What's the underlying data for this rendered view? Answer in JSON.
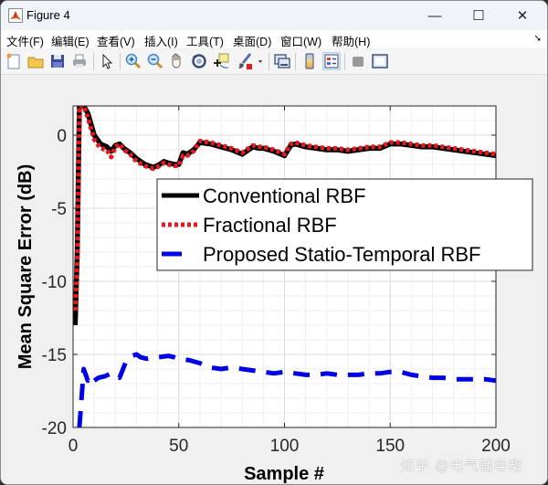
{
  "window": {
    "title": "Figure 4",
    "controls": {
      "minimize": "—",
      "maximize": "☐",
      "close": "✕"
    }
  },
  "menubar": {
    "items": [
      {
        "label": "文件(F)"
      },
      {
        "label": "编辑(E)"
      },
      {
        "label": "查看(V)"
      },
      {
        "label": "插入(I)"
      },
      {
        "label": "工具(T)"
      },
      {
        "label": "桌面(D)"
      },
      {
        "label": "窗口(W)"
      },
      {
        "label": "帮助(H)"
      }
    ],
    "dock_arrow": "➘"
  },
  "toolbar": {
    "buttons": [
      "new-figure",
      "open-file",
      "save-figure",
      "print-figure",
      "edit-plot",
      "zoom-in",
      "zoom-out",
      "pan",
      "rotate-3d",
      "data-cursor",
      "brush",
      "link-plot",
      "insert-colorbar",
      "insert-legend",
      "hide-plot-tools",
      "show-plot-tools"
    ]
  },
  "colors": {
    "conventional": "#000000",
    "fractional": "#e8191c",
    "proposed": "#0000e6",
    "grid": "#e6e6e6",
    "axes_bg": "#ffffff",
    "figure_bg": "#f0f0f0"
  },
  "watermark": "知乎 @电气辅导帮",
  "chart_data": {
    "type": "line",
    "title": "",
    "xlabel": "Sample #",
    "ylabel": "Mean Square Error (dB)",
    "xlim": [
      0,
      200
    ],
    "ylim": [
      -20,
      2
    ],
    "xticks": [
      0,
      50,
      100,
      150,
      200
    ],
    "yticks": [
      -20,
      -15,
      -10,
      -5,
      0
    ],
    "xtick_labels": [
      "0",
      "50",
      "100",
      "150",
      "200"
    ],
    "ytick_labels": [
      "-20",
      "-15",
      "-10",
      "-5",
      "0"
    ],
    "grid": true,
    "minor_grid": true,
    "legend_position": "inside-right-middle",
    "series": [
      {
        "name": "Conventional RBF",
        "style": "solid",
        "color": "#000000",
        "x": [
          1,
          2,
          3,
          4,
          5,
          7,
          10,
          13,
          16,
          18,
          20,
          22,
          24,
          27,
          30,
          34,
          38,
          41,
          43,
          45,
          48,
          50,
          52,
          54,
          57,
          60,
          65,
          70,
          75,
          80,
          85,
          88,
          90,
          95,
          100,
          103,
          105,
          110,
          115,
          120,
          125,
          130,
          135,
          140,
          145,
          150,
          155,
          160,
          165,
          170,
          175,
          180,
          185,
          190,
          195,
          200
        ],
        "y": [
          -13,
          -8,
          2,
          2,
          2,
          1.5,
          0,
          -0.6,
          -0.8,
          -1.1,
          -0.7,
          -0.6,
          -0.9,
          -1.2,
          -1.6,
          -2.0,
          -2.2,
          -2.0,
          -1.8,
          -1.9,
          -2.0,
          -2.0,
          -1.2,
          -1.3,
          -1.0,
          -0.5,
          -0.6,
          -0.8,
          -1.0,
          -1.3,
          -0.8,
          -0.9,
          -0.9,
          -1.1,
          -1.4,
          -0.7,
          -0.6,
          -0.8,
          -0.9,
          -1.0,
          -1.0,
          -1.1,
          -1.0,
          -0.9,
          -0.9,
          -0.6,
          -0.6,
          -0.7,
          -0.8,
          -0.8,
          -0.9,
          -1.0,
          -1.1,
          -1.2,
          -1.3,
          -1.4
        ]
      },
      {
        "name": "Fractional RBF",
        "style": "dotted",
        "color": "#e8191c",
        "x": [
          1,
          2,
          3,
          4,
          5,
          7,
          10,
          13,
          16,
          18,
          20,
          22,
          24,
          27,
          30,
          34,
          38,
          41,
          43,
          45,
          48,
          50,
          52,
          54,
          57,
          60,
          65,
          70,
          75,
          80,
          85,
          88,
          90,
          95,
          100,
          103,
          105,
          110,
          115,
          120,
          125,
          130,
          135,
          140,
          145,
          150,
          155,
          160,
          165,
          170,
          175,
          180,
          185,
          190,
          195,
          200
        ],
        "y": [
          -12,
          -9,
          2,
          2,
          2,
          1.2,
          -0.3,
          -0.9,
          -1.0,
          -1.5,
          -0.8,
          -0.6,
          -1.0,
          -1.3,
          -1.8,
          -2.1,
          -2.3,
          -2.1,
          -1.9,
          -2.0,
          -2.1,
          -2.1,
          -1.4,
          -1.4,
          -1.1,
          -0.4,
          -0.5,
          -0.7,
          -0.9,
          -1.2,
          -0.7,
          -0.8,
          -0.8,
          -1.0,
          -1.3,
          -0.6,
          -0.5,
          -0.7,
          -0.8,
          -0.9,
          -0.9,
          -1.0,
          -0.9,
          -0.8,
          -0.8,
          -0.5,
          -0.5,
          -0.6,
          -0.7,
          -0.7,
          -0.8,
          -0.9,
          -1.0,
          -1.1,
          -1.2,
          -1.3
        ]
      },
      {
        "name": "Proposed Statio-Temporal RBF",
        "style": "dashed",
        "color": "#0000e6",
        "x": [
          3,
          4,
          5,
          7,
          8,
          9,
          10,
          12,
          15,
          18,
          20,
          22,
          25,
          28,
          30,
          32,
          35,
          40,
          45,
          48,
          50,
          55,
          60,
          65,
          70,
          75,
          80,
          85,
          90,
          95,
          100,
          105,
          110,
          115,
          120,
          125,
          130,
          135,
          140,
          145,
          150,
          155,
          160,
          165,
          170,
          175,
          180,
          185,
          190,
          195,
          200
        ],
        "y": [
          -20,
          -18,
          -16,
          -16.8,
          -16.5,
          -16.7,
          -16.8,
          -16.6,
          -16.5,
          -16.3,
          -16.4,
          -16.6,
          -15.5,
          -15.1,
          -15.0,
          -15.2,
          -15.3,
          -15.2,
          -15.1,
          -15.2,
          -15.3,
          -15.4,
          -15.6,
          -15.9,
          -16.0,
          -15.9,
          -16.0,
          -16.1,
          -16.2,
          -16.3,
          -16.2,
          -16.3,
          -16.4,
          -16.4,
          -16.3,
          -16.4,
          -16.4,
          -16.4,
          -16.3,
          -16.3,
          -16.2,
          -16.2,
          -16.4,
          -16.5,
          -16.6,
          -16.6,
          -16.7,
          -16.7,
          -16.7,
          -16.7,
          -16.8
        ]
      }
    ]
  }
}
